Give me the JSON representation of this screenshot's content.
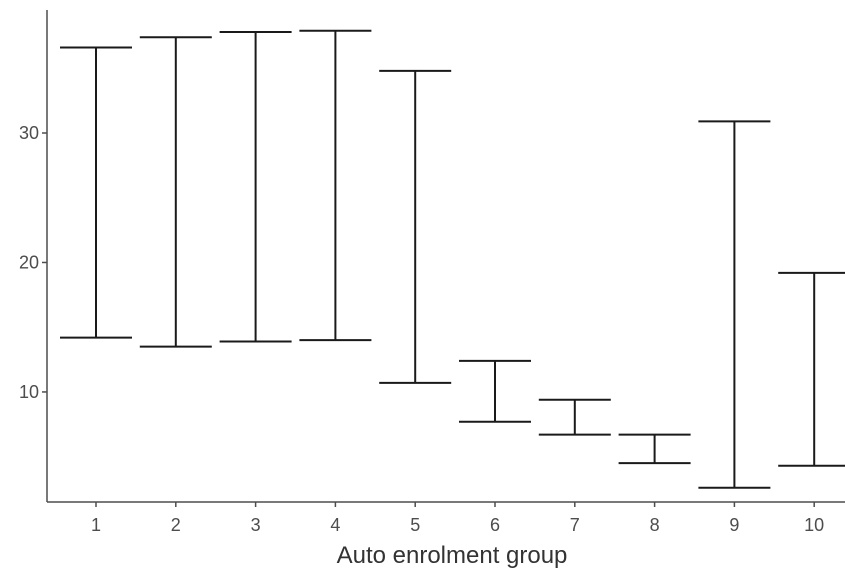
{
  "chart_data": {
    "type": "errorbar",
    "xlabel": "Auto enrolment group",
    "ylabel": "",
    "title": "",
    "categories": [
      "1",
      "2",
      "3",
      "4",
      "5",
      "6",
      "7",
      "8",
      "9",
      "10"
    ],
    "lower": [
      14.2,
      13.5,
      13.9,
      14.0,
      10.7,
      7.7,
      6.7,
      4.5,
      2.6,
      4.3
    ],
    "upper": [
      36.6,
      37.4,
      37.8,
      37.9,
      34.8,
      12.4,
      9.4,
      6.7,
      30.9,
      19.2
    ],
    "ylim": [
      1.5,
      39.5
    ],
    "yticks": [
      10,
      20,
      30
    ],
    "grid": false,
    "colors": {
      "bars": "#1a1a1a",
      "axis": "#4d4d4d",
      "tick_labels": "#4d4d4d",
      "axis_title": "#333333"
    }
  }
}
